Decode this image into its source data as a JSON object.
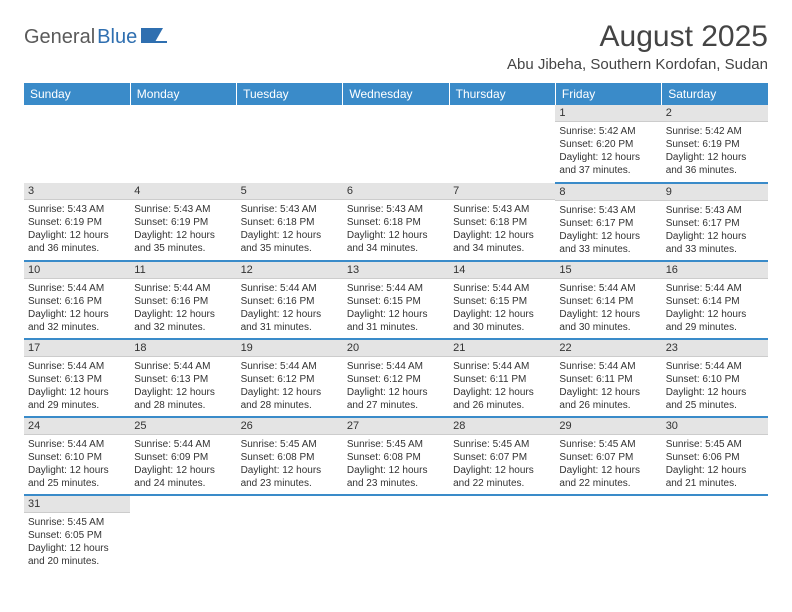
{
  "logo": {
    "text1": "General",
    "text2": "Blue"
  },
  "title": "August 2025",
  "location": "Abu Jibeha, Southern Kordofan, Sudan",
  "colors": {
    "header_bg": "#3a8bc9",
    "header_text": "#ffffff",
    "daynum_bg": "#e4e4e4",
    "row_border": "#3a8bc9",
    "body_text": "#333333",
    "logo_gray": "#5a5a5a",
    "logo_blue": "#2f6fb0"
  },
  "weekdays": [
    "Sunday",
    "Monday",
    "Tuesday",
    "Wednesday",
    "Thursday",
    "Friday",
    "Saturday"
  ],
  "weeks": [
    [
      null,
      null,
      null,
      null,
      null,
      {
        "n": "1",
        "sr": "5:42 AM",
        "ss": "6:20 PM",
        "dl": "12 hours and 37 minutes."
      },
      {
        "n": "2",
        "sr": "5:42 AM",
        "ss": "6:19 PM",
        "dl": "12 hours and 36 minutes."
      }
    ],
    [
      {
        "n": "3",
        "sr": "5:43 AM",
        "ss": "6:19 PM",
        "dl": "12 hours and 36 minutes."
      },
      {
        "n": "4",
        "sr": "5:43 AM",
        "ss": "6:19 PM",
        "dl": "12 hours and 35 minutes."
      },
      {
        "n": "5",
        "sr": "5:43 AM",
        "ss": "6:18 PM",
        "dl": "12 hours and 35 minutes."
      },
      {
        "n": "6",
        "sr": "5:43 AM",
        "ss": "6:18 PM",
        "dl": "12 hours and 34 minutes."
      },
      {
        "n": "7",
        "sr": "5:43 AM",
        "ss": "6:18 PM",
        "dl": "12 hours and 34 minutes."
      },
      {
        "n": "8",
        "sr": "5:43 AM",
        "ss": "6:17 PM",
        "dl": "12 hours and 33 minutes."
      },
      {
        "n": "9",
        "sr": "5:43 AM",
        "ss": "6:17 PM",
        "dl": "12 hours and 33 minutes."
      }
    ],
    [
      {
        "n": "10",
        "sr": "5:44 AM",
        "ss": "6:16 PM",
        "dl": "12 hours and 32 minutes."
      },
      {
        "n": "11",
        "sr": "5:44 AM",
        "ss": "6:16 PM",
        "dl": "12 hours and 32 minutes."
      },
      {
        "n": "12",
        "sr": "5:44 AM",
        "ss": "6:16 PM",
        "dl": "12 hours and 31 minutes."
      },
      {
        "n": "13",
        "sr": "5:44 AM",
        "ss": "6:15 PM",
        "dl": "12 hours and 31 minutes."
      },
      {
        "n": "14",
        "sr": "5:44 AM",
        "ss": "6:15 PM",
        "dl": "12 hours and 30 minutes."
      },
      {
        "n": "15",
        "sr": "5:44 AM",
        "ss": "6:14 PM",
        "dl": "12 hours and 30 minutes."
      },
      {
        "n": "16",
        "sr": "5:44 AM",
        "ss": "6:14 PM",
        "dl": "12 hours and 29 minutes."
      }
    ],
    [
      {
        "n": "17",
        "sr": "5:44 AM",
        "ss": "6:13 PM",
        "dl": "12 hours and 29 minutes."
      },
      {
        "n": "18",
        "sr": "5:44 AM",
        "ss": "6:13 PM",
        "dl": "12 hours and 28 minutes."
      },
      {
        "n": "19",
        "sr": "5:44 AM",
        "ss": "6:12 PM",
        "dl": "12 hours and 28 minutes."
      },
      {
        "n": "20",
        "sr": "5:44 AM",
        "ss": "6:12 PM",
        "dl": "12 hours and 27 minutes."
      },
      {
        "n": "21",
        "sr": "5:44 AM",
        "ss": "6:11 PM",
        "dl": "12 hours and 26 minutes."
      },
      {
        "n": "22",
        "sr": "5:44 AM",
        "ss": "6:11 PM",
        "dl": "12 hours and 26 minutes."
      },
      {
        "n": "23",
        "sr": "5:44 AM",
        "ss": "6:10 PM",
        "dl": "12 hours and 25 minutes."
      }
    ],
    [
      {
        "n": "24",
        "sr": "5:44 AM",
        "ss": "6:10 PM",
        "dl": "12 hours and 25 minutes."
      },
      {
        "n": "25",
        "sr": "5:44 AM",
        "ss": "6:09 PM",
        "dl": "12 hours and 24 minutes."
      },
      {
        "n": "26",
        "sr": "5:45 AM",
        "ss": "6:08 PM",
        "dl": "12 hours and 23 minutes."
      },
      {
        "n": "27",
        "sr": "5:45 AM",
        "ss": "6:08 PM",
        "dl": "12 hours and 23 minutes."
      },
      {
        "n": "28",
        "sr": "5:45 AM",
        "ss": "6:07 PM",
        "dl": "12 hours and 22 minutes."
      },
      {
        "n": "29",
        "sr": "5:45 AM",
        "ss": "6:07 PM",
        "dl": "12 hours and 22 minutes."
      },
      {
        "n": "30",
        "sr": "5:45 AM",
        "ss": "6:06 PM",
        "dl": "12 hours and 21 minutes."
      }
    ],
    [
      {
        "n": "31",
        "sr": "5:45 AM",
        "ss": "6:05 PM",
        "dl": "12 hours and 20 minutes."
      },
      null,
      null,
      null,
      null,
      null,
      null
    ]
  ],
  "labels": {
    "sunrise": "Sunrise:",
    "sunset": "Sunset:",
    "daylight": "Daylight:"
  }
}
